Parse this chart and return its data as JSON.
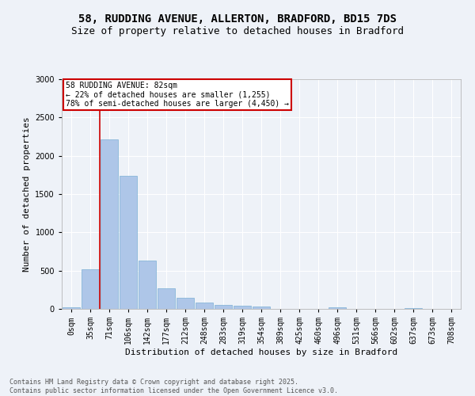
{
  "title_line1": "58, RUDDING AVENUE, ALLERTON, BRADFORD, BD15 7DS",
  "title_line2": "Size of property relative to detached houses in Bradford",
  "xlabel": "Distribution of detached houses by size in Bradford",
  "ylabel": "Number of detached properties",
  "categories": [
    "0sqm",
    "35sqm",
    "71sqm",
    "106sqm",
    "142sqm",
    "177sqm",
    "212sqm",
    "248sqm",
    "283sqm",
    "319sqm",
    "354sqm",
    "389sqm",
    "425sqm",
    "460sqm",
    "496sqm",
    "531sqm",
    "566sqm",
    "602sqm",
    "637sqm",
    "673sqm",
    "708sqm"
  ],
  "values": [
    20,
    520,
    2210,
    1740,
    635,
    270,
    150,
    85,
    50,
    40,
    35,
    5,
    5,
    5,
    25,
    0,
    0,
    0,
    15,
    0,
    0
  ],
  "bar_color": "#aec6e8",
  "bar_edge_color": "#7bafd4",
  "vline_bin_index": 2,
  "annotation_text": "58 RUDDING AVENUE: 82sqm\n← 22% of detached houses are smaller (1,255)\n78% of semi-detached houses are larger (4,450) →",
  "annotation_box_color": "#ffffff",
  "annotation_box_edge": "#cc0000",
  "vline_color": "#cc0000",
  "ylim": [
    0,
    3000
  ],
  "yticks": [
    0,
    500,
    1000,
    1500,
    2000,
    2500,
    3000
  ],
  "background_color": "#eef2f8",
  "footer_line1": "Contains HM Land Registry data © Crown copyright and database right 2025.",
  "footer_line2": "Contains public sector information licensed under the Open Government Licence v3.0.",
  "title_fontsize": 10,
  "subtitle_fontsize": 9,
  "axis_label_fontsize": 8,
  "tick_fontsize": 7,
  "annotation_fontsize": 7,
  "footer_fontsize": 6
}
